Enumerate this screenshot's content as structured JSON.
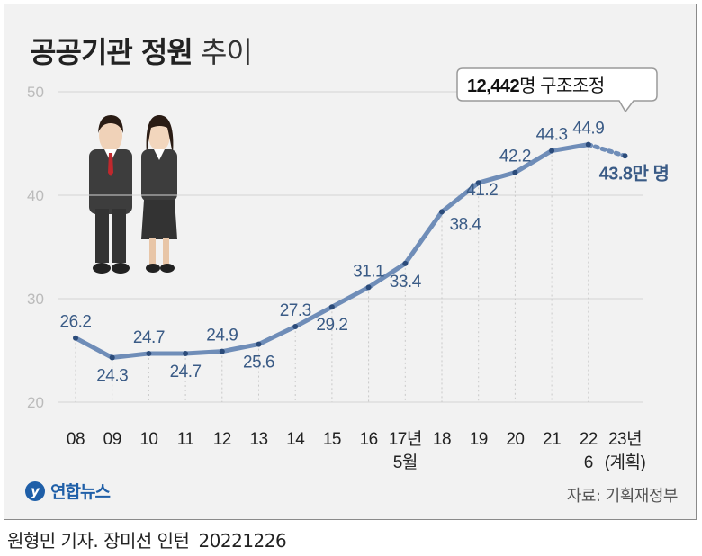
{
  "title": {
    "bold": "공공기관 정원",
    "light": "추이"
  },
  "chart_data": {
    "type": "line",
    "title": "공공기관 정원 추이",
    "xlabel": "",
    "ylabel": "",
    "ylim": [
      20,
      50
    ],
    "yticks": [
      20,
      30,
      40,
      50
    ],
    "grid": true,
    "categories": [
      "08",
      "09",
      "10",
      "11",
      "12",
      "13",
      "14",
      "15",
      "16",
      "17년 5월",
      "18",
      "19",
      "20",
      "21",
      "22 6",
      "23년 (계획)"
    ],
    "x_tick_labels": [
      [
        "08"
      ],
      [
        "09"
      ],
      [
        "10"
      ],
      [
        "11"
      ],
      [
        "12"
      ],
      [
        "13"
      ],
      [
        "14"
      ],
      [
        "15"
      ],
      [
        "16"
      ],
      [
        "17년",
        "5월"
      ],
      [
        "18"
      ],
      [
        "19"
      ],
      [
        "20"
      ],
      [
        "21"
      ],
      [
        "22",
        "6"
      ],
      [
        "23년",
        "(계획)"
      ]
    ],
    "series": [
      {
        "values": [
          26.2,
          24.3,
          24.7,
          24.7,
          24.9,
          25.6,
          27.3,
          29.2,
          31.1,
          33.4,
          38.4,
          41.2,
          42.2,
          44.3,
          44.9,
          43.8
        ]
      }
    ],
    "data_labels": [
      "26.2",
      "24.3",
      "24.7",
      "24.7",
      "24.9",
      "25.6",
      "27.3",
      "29.2",
      "31.1",
      "33.4",
      "38.4",
      "41.2",
      "42.2",
      "44.3",
      "44.9",
      "43.8만 명"
    ],
    "planned_last_point": true,
    "annotation": {
      "number": "12,442",
      "text": "명 구조조정"
    },
    "colors": {
      "line": "#6f8db8",
      "marker": "#2b4b7a",
      "label": "#3a5b86",
      "grid": "#d4d4d4",
      "axis_text": "#222222",
      "tick_text": "#bbbbbb"
    }
  },
  "logo": {
    "mark": "y",
    "text": "연합뉴스"
  },
  "source": "자료: 기획재정부",
  "byline": {
    "author": "원형민 기자. 장미선 인턴",
    "date": "20221226"
  }
}
